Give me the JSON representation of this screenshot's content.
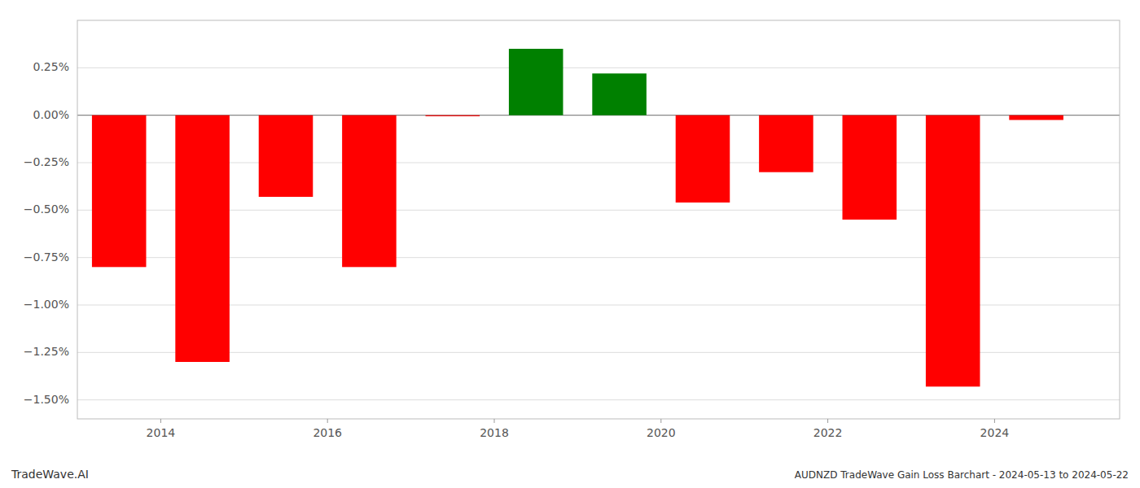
{
  "chart_data": {
    "type": "bar",
    "x": [
      2013.5,
      2014.5,
      2015.5,
      2016.5,
      2017.5,
      2018.5,
      2019.5,
      2020.5,
      2021.5,
      2022.5,
      2023.5,
      2024.5
    ],
    "values": [
      -0.008,
      -0.013,
      -0.0043,
      -0.008,
      -5e-05,
      0.0035,
      0.0022,
      -0.0046,
      -0.003,
      -0.0055,
      -0.0143,
      -0.00025
    ],
    "colors": [
      "#ff0000",
      "#ff0000",
      "#ff0000",
      "#ff0000",
      "#ff0000",
      "#008000",
      "#008000",
      "#ff0000",
      "#ff0000",
      "#ff0000",
      "#ff0000",
      "#ff0000"
    ],
    "xlim": [
      2013.0,
      2025.5
    ],
    "xticks": [
      2014,
      2016,
      2018,
      2020,
      2022,
      2024
    ],
    "ylim": [
      -0.016,
      0.005
    ],
    "yticks": [
      {
        "value": -0.015,
        "label": "−1.50%"
      },
      {
        "value": -0.0125,
        "label": "−1.25%"
      },
      {
        "value": -0.01,
        "label": "−1.00%"
      },
      {
        "value": -0.0075,
        "label": "−0.75%"
      },
      {
        "value": -0.005,
        "label": "−0.50%"
      },
      {
        "value": -0.0025,
        "label": "−0.25%"
      },
      {
        "value": 0.0,
        "label": "0.00%"
      },
      {
        "value": 0.0025,
        "label": "0.25%"
      }
    ],
    "grid": true,
    "annotations": [
      "TradeWave.AI",
      "AUDNZD TradeWave Gain Loss Barchart - 2024-05-13 to 2024-05-22"
    ]
  }
}
